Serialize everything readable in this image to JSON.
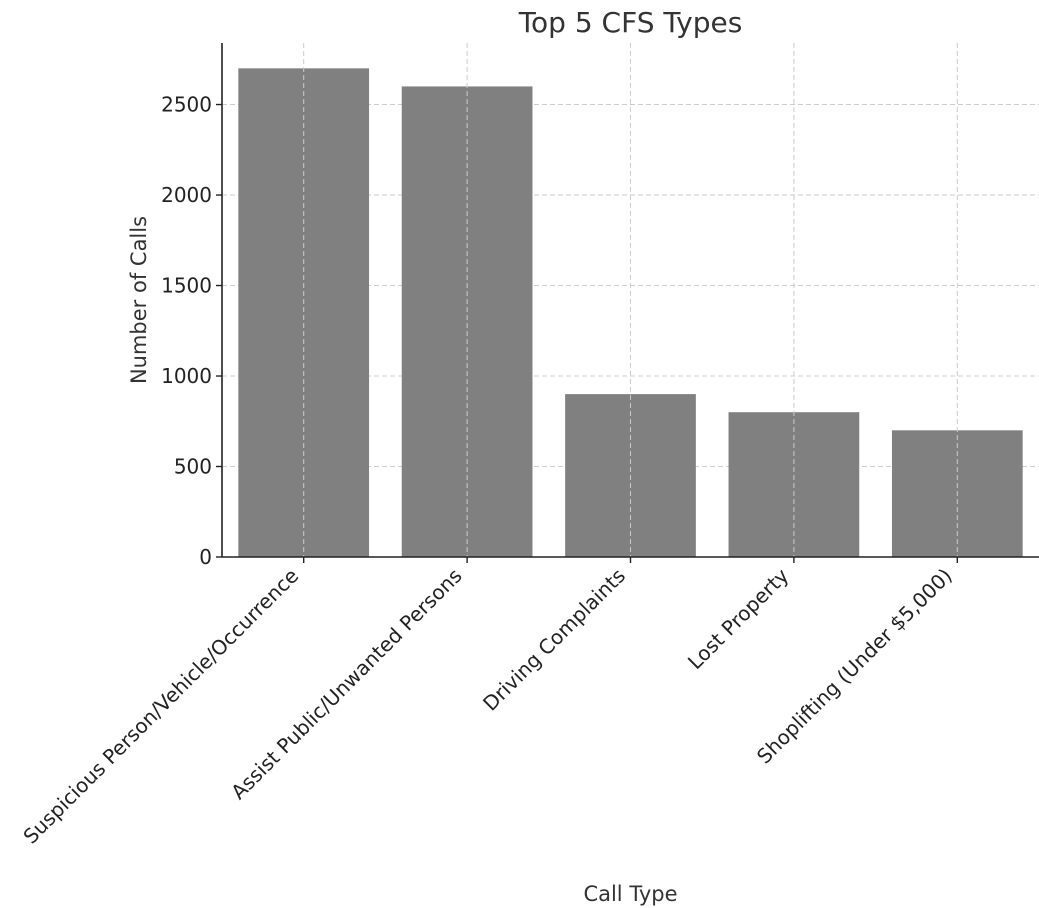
{
  "chart_data": {
    "type": "bar",
    "title": "Top 5 CFS Types",
    "xlabel": "Call Type",
    "ylabel": "Number of Calls",
    "categories": [
      "Suspicious Person/Vehicle/Occurrence",
      "Assist Public/Unwanted Persons",
      "Driving Complaints",
      "Lost Property",
      "Shoplifting (Under $5,000)"
    ],
    "values": [
      2700,
      2600,
      900,
      800,
      700
    ],
    "ylim": [
      0,
      2840
    ],
    "yticks": [
      0,
      500,
      1000,
      1500,
      2000,
      2500
    ],
    "grid": true,
    "bar_color": "#808080"
  }
}
